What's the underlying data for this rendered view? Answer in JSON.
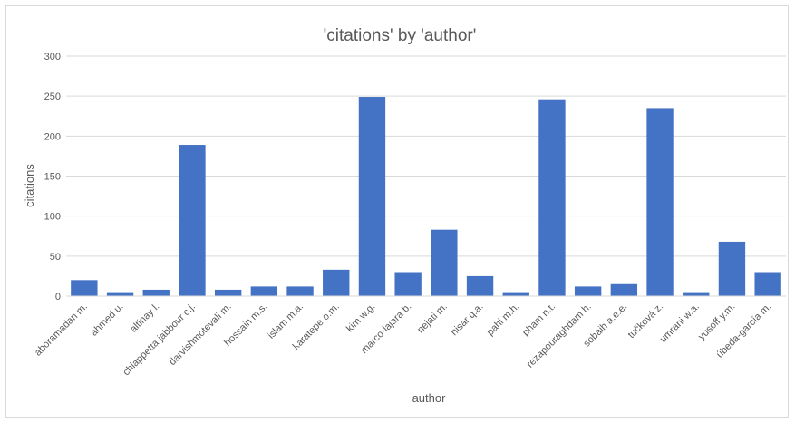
{
  "chart_data": {
    "type": "bar",
    "title": "'citations' by 'author'",
    "xlabel": "author",
    "ylabel": "citations",
    "ylim": [
      0,
      300
    ],
    "yticks": [
      0,
      50,
      100,
      150,
      200,
      250,
      300
    ],
    "grid": true,
    "bar_color": "#4472c4",
    "categories": [
      "aboramadan m.",
      "ahmed u.",
      "altinay l.",
      "chiappetta jabbour c.j.",
      "darvishmotevali m.",
      "hossain m.s.",
      "islam m.a.",
      "karatepe o.m.",
      "kim w.g.",
      "marco-lajara b.",
      "nejati m.",
      "nisar q.a.",
      "pahi m.h.",
      "pham n.t.",
      "rezapouraghdam h.",
      "sobaih a.e.e.",
      "tučková z.",
      "umrani w.a.",
      "yusoff y.m.",
      "úbeda-garcía m."
    ],
    "values": [
      20,
      5,
      8,
      189,
      8,
      12,
      12,
      33,
      249,
      30,
      83,
      25,
      5,
      246,
      12,
      15,
      235,
      5,
      68,
      30
    ]
  }
}
